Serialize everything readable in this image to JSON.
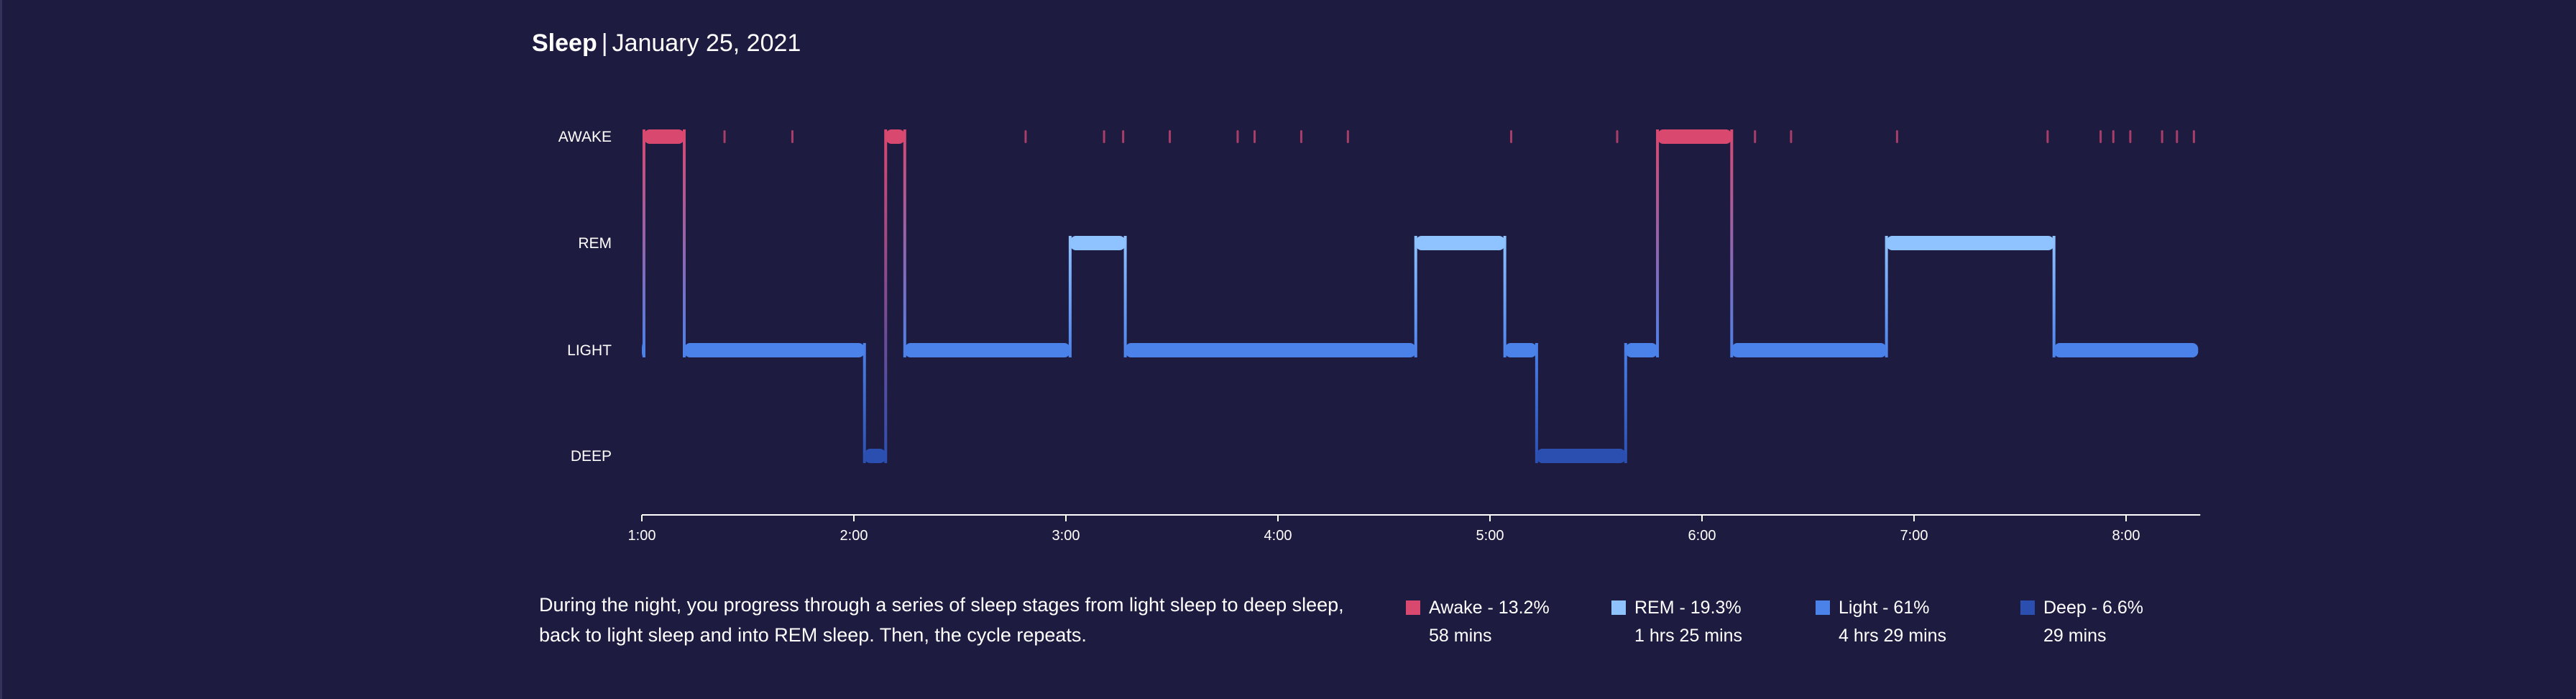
{
  "header": {
    "title": "Sleep",
    "separator": "|",
    "date": "January 25, 2021"
  },
  "description": "During the night, you progress through a series of sleep stages from light sleep to deep sleep, back to light sleep and into REM sleep. Then, the cycle repeats.",
  "legend": [
    {
      "key": "awake",
      "name": "Awake - 13.2%",
      "duration": "58 mins",
      "color": "#d9486f"
    },
    {
      "key": "rem",
      "name": "REM - 19.3%",
      "duration": "1 hrs 25 mins",
      "color": "#8fc3ff"
    },
    {
      "key": "light",
      "name": "Light - 61%",
      "duration": "4 hrs 29 mins",
      "color": "#4b82ea"
    },
    {
      "key": "deep",
      "name": "Deep - 6.6%",
      "duration": "29 mins",
      "color": "#2a4fb0"
    }
  ],
  "chart_data": {
    "type": "step",
    "title": "",
    "xlabel": "",
    "ylabel": "",
    "y_categories": [
      "AWAKE",
      "REM",
      "LIGHT",
      "DEEP"
    ],
    "x_ticks": [
      "1:00",
      "2:00",
      "3:00",
      "4:00",
      "5:00",
      "6:00",
      "7:00",
      "8:00"
    ],
    "x_range_hours": [
      1.0,
      8.35
    ],
    "grid": false,
    "colors": {
      "AWAKE": "#d9486f",
      "REM": "#8fc3ff",
      "LIGHT": "#4b82ea",
      "DEEP": "#2a4fb0"
    },
    "segments": [
      {
        "stage": "LIGHT",
        "start": 1.0,
        "end": 1.01
      },
      {
        "stage": "AWAKE",
        "start": 1.01,
        "end": 1.2
      },
      {
        "stage": "LIGHT",
        "start": 1.2,
        "end": 2.05
      },
      {
        "stage": "DEEP",
        "start": 2.05,
        "end": 2.15
      },
      {
        "stage": "AWAKE",
        "start": 2.15,
        "end": 2.24
      },
      {
        "stage": "LIGHT",
        "start": 2.24,
        "end": 3.02
      },
      {
        "stage": "REM",
        "start": 3.02,
        "end": 3.28
      },
      {
        "stage": "LIGHT",
        "start": 3.28,
        "end": 4.65
      },
      {
        "stage": "REM",
        "start": 4.65,
        "end": 5.07
      },
      {
        "stage": "LIGHT",
        "start": 5.07,
        "end": 5.22
      },
      {
        "stage": "DEEP",
        "start": 5.22,
        "end": 5.64
      },
      {
        "stage": "LIGHT",
        "start": 5.64,
        "end": 5.79
      },
      {
        "stage": "AWAKE",
        "start": 5.79,
        "end": 6.14
      },
      {
        "stage": "LIGHT",
        "start": 6.14,
        "end": 6.87
      },
      {
        "stage": "REM",
        "start": 6.87,
        "end": 7.66
      },
      {
        "stage": "LIGHT",
        "start": 7.66,
        "end": 8.34
      }
    ],
    "brief_awakenings": [
      1.39,
      1.71,
      2.81,
      3.18,
      3.27,
      3.49,
      3.81,
      3.89,
      4.11,
      4.33,
      5.1,
      5.6,
      6.25,
      6.42,
      6.92,
      7.63,
      7.88,
      7.94,
      8.02,
      8.17,
      8.24,
      8.32
    ]
  }
}
